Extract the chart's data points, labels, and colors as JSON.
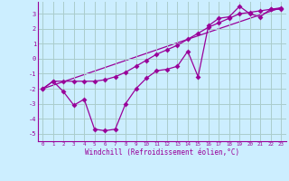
{
  "xlabel": "Windchill (Refroidissement éolien,°C)",
  "xlim": [
    -0.5,
    23.5
  ],
  "ylim": [
    -5.5,
    3.8
  ],
  "yticks": [
    -5,
    -4,
    -3,
    -2,
    -1,
    0,
    1,
    2,
    3
  ],
  "xticks": [
    0,
    1,
    2,
    3,
    4,
    5,
    6,
    7,
    8,
    9,
    10,
    11,
    12,
    13,
    14,
    15,
    16,
    17,
    18,
    19,
    20,
    21,
    22,
    23
  ],
  "bg_color": "#cceeff",
  "grid_color": "#aacccc",
  "line_color": "#990099",
  "line1_x": [
    0,
    1,
    2,
    3,
    4,
    5,
    6,
    7,
    8,
    9,
    10,
    11,
    12,
    13,
    14,
    15,
    16,
    17,
    18,
    19,
    20,
    21,
    22,
    23
  ],
  "line1_y": [
    -2.0,
    -1.5,
    -2.2,
    -3.1,
    -2.7,
    -4.7,
    -4.8,
    -4.7,
    -3.0,
    -2.0,
    -1.3,
    -0.8,
    -0.7,
    -0.5,
    0.5,
    -1.2,
    2.2,
    2.7,
    2.8,
    3.5,
    3.0,
    2.8,
    3.3,
    3.3
  ],
  "line2_x": [
    0,
    1,
    2,
    3,
    4,
    5,
    6,
    7,
    8,
    9,
    10,
    11,
    12,
    13,
    14,
    15,
    16,
    17,
    18,
    19,
    20,
    21,
    22,
    23
  ],
  "line2_y": [
    -2.0,
    -1.5,
    -1.5,
    -1.5,
    -1.5,
    -1.5,
    -1.4,
    -1.2,
    -0.9,
    -0.5,
    -0.1,
    0.3,
    0.6,
    0.9,
    1.3,
    1.7,
    2.1,
    2.4,
    2.7,
    3.0,
    3.1,
    3.2,
    3.3,
    3.4
  ],
  "line3_x": [
    0,
    14,
    23
  ],
  "line3_y": [
    -2.0,
    1.3,
    3.4
  ]
}
